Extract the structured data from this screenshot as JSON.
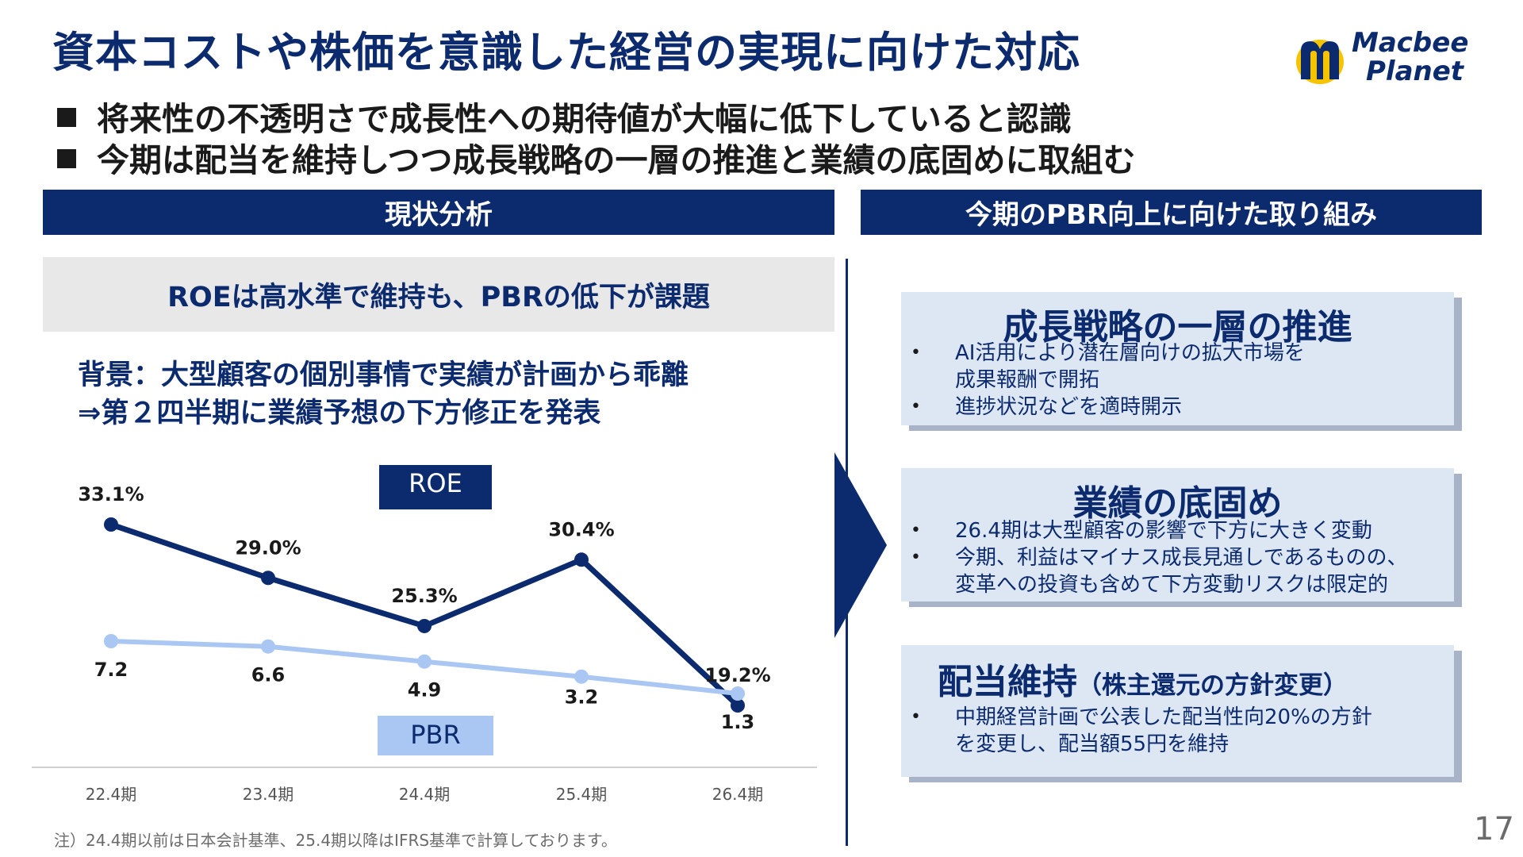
{
  "title": "資本コストや株価を意識した経営の実現に向けた対応",
  "logo": {
    "line1": "Macbee",
    "line2": "Planet"
  },
  "bullets": [
    "将来性の不透明さで成長性への期待値が大幅に低下していると認識",
    "今期は配当を維持しつつ成長戦略の一層の推進と業績の底固めに取組む"
  ],
  "left_header": "現状分析",
  "right_header": "今期のPBR向上に向けた取り組み",
  "left_subtitle": "ROEは高水準で維持も、PBRの低下が課題",
  "background_lines": [
    "背景：大型顧客の個別事情で実績が計画から乖離",
    "⇒第２四半期に業績予想の下方修正を発表"
  ],
  "chart_data": {
    "type": "line",
    "categories": [
      "22.4期",
      "23.4期",
      "24.4期",
      "25.4期",
      "26.4期"
    ],
    "series": [
      {
        "name": "ROE",
        "values": [
          33.1,
          29.0,
          25.3,
          30.4,
          19.2
        ],
        "labels": [
          "33.1%",
          "29.0%",
          "25.3%",
          "30.4%",
          "19.2%"
        ],
        "color": "#0c2a6e"
      },
      {
        "name": "PBR",
        "values": [
          7.2,
          6.6,
          4.9,
          3.2,
          1.3
        ],
        "labels": [
          "7.2",
          "6.6",
          "4.9",
          "3.2",
          "1.3"
        ],
        "color": "#aac6f2"
      }
    ],
    "legend_placement": "inline-labels",
    "grid": false
  },
  "cards": [
    {
      "title": "成長戦略の一層の推進",
      "subtitle": "",
      "items": [
        "AI活用により潜在層向けの拡大市場を\n成果報酬で開拓",
        "進捗状況などを適時開示"
      ]
    },
    {
      "title": "業績の底固め",
      "subtitle": "",
      "items": [
        "26.4期は大型顧客の影響で下方に大きく変動",
        "今期、利益はマイナス成長見通しであるものの、\n変革への投資も含めて下方変動リスクは限定的"
      ]
    },
    {
      "title": "配当維持",
      "subtitle": "（株主還元の方針変更）",
      "items": [
        "中期経営計画で公表した配当性向20%の方針\nを変更し、配当額55円を維持"
      ]
    }
  ],
  "note": "注）24.4期以前は日本会計基準、25.4期以降はIFRS基準で計算しております。",
  "page_number": "17",
  "colors": {
    "navy": "#0c2a6e",
    "light_blue": "#aac6f2",
    "card_bg": "#dde7f4",
    "logo_yellow": "#f5c400"
  }
}
